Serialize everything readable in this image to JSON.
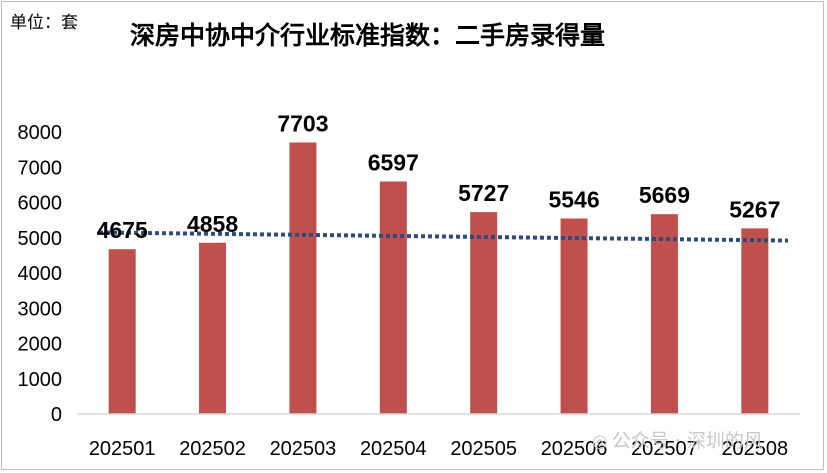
{
  "unit_label": "单位：套",
  "title": "深房中协中介行业标准指数：二手房录得量",
  "watermark": {
    "icon": "wechat-icon",
    "text": "公众号 · 深圳的风"
  },
  "colors": {
    "bar": "#c0504d",
    "trendline": "#2f4b7c",
    "axis": "#d9d9d9"
  },
  "chart_data": {
    "type": "bar",
    "title": "深房中协中介行业标准指数：二手房录得量",
    "xlabel": "",
    "ylabel": "",
    "unit": "单位：套",
    "categories": [
      "202501",
      "202502",
      "202503",
      "202504",
      "202505",
      "202506",
      "202507",
      "202508"
    ],
    "values": [
      4675,
      4858,
      7703,
      6597,
      5727,
      5546,
      5669,
      5267
    ],
    "ylim": [
      0,
      8000
    ],
    "yticks": [
      0,
      1000,
      2000,
      3000,
      4000,
      5000,
      6000,
      7000,
      8000
    ],
    "grid": false,
    "legend": "none",
    "data_labels": true,
    "trendline": {
      "style": "dotted",
      "type": "linear",
      "start_value": 5150,
      "end_value": 4920
    }
  }
}
